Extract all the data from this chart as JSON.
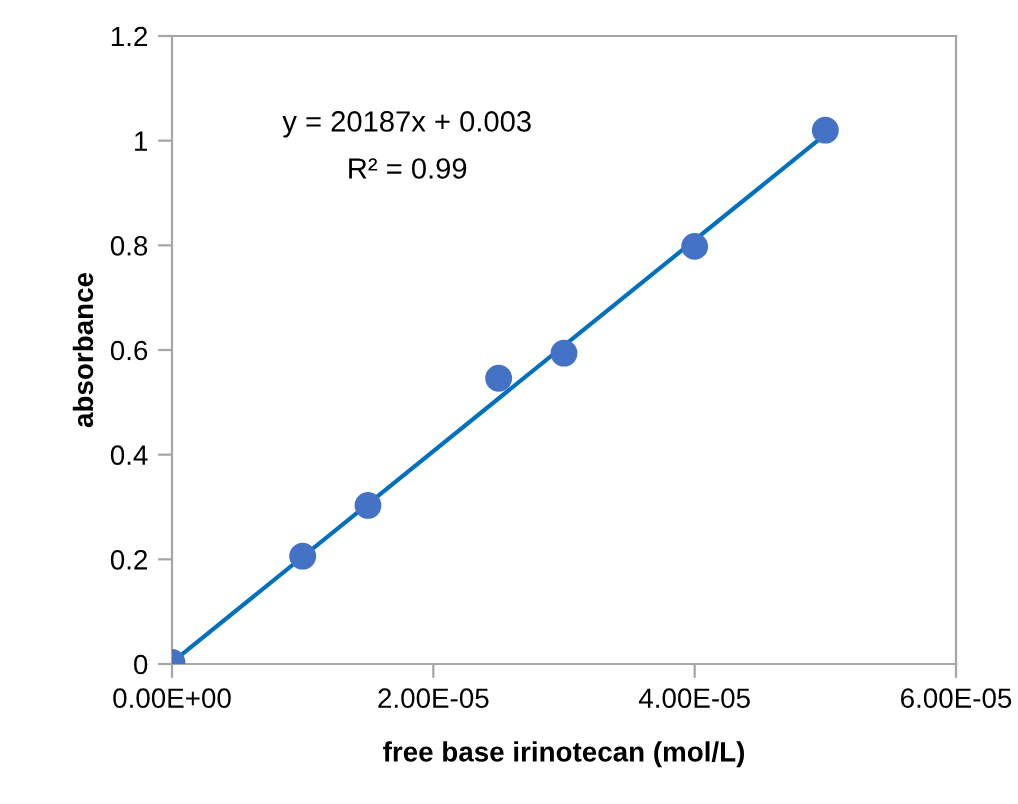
{
  "chart_data": {
    "type": "scatter",
    "xlabel": "free base irinotecan (mol/L)",
    "ylabel": "absorbance",
    "xlim": [
      0,
      6e-05
    ],
    "ylim": [
      0,
      1.2
    ],
    "xticks": [
      {
        "value": 0,
        "label": "0.00E+00"
      },
      {
        "value": 2e-05,
        "label": "2.00E-05"
      },
      {
        "value": 4e-05,
        "label": "4.00E-05"
      },
      {
        "value": 6e-05,
        "label": "6.00E-05"
      }
    ],
    "yticks": [
      0,
      0.2,
      0.4,
      0.6,
      0.8,
      1,
      1.2
    ],
    "grid": false,
    "legend": false,
    "series": [
      {
        "marker": "circle",
        "color": "#4472c4",
        "x": [
          0,
          1e-05,
          1.5e-05,
          2.5e-05,
          3e-05,
          4e-05,
          5e-05
        ],
        "values": [
          0.003,
          0.206,
          0.303,
          0.546,
          0.594,
          0.798,
          1.02
        ]
      },
      {
        "type": "line",
        "marker": "none",
        "color": "#0070c0",
        "line_style": "solid",
        "x": [
          0,
          5e-05
        ],
        "values": [
          0.003,
          1.012
        ]
      }
    ],
    "annotations": [
      "y = 20187x + 0.003",
      "R² = 0.99"
    ]
  }
}
